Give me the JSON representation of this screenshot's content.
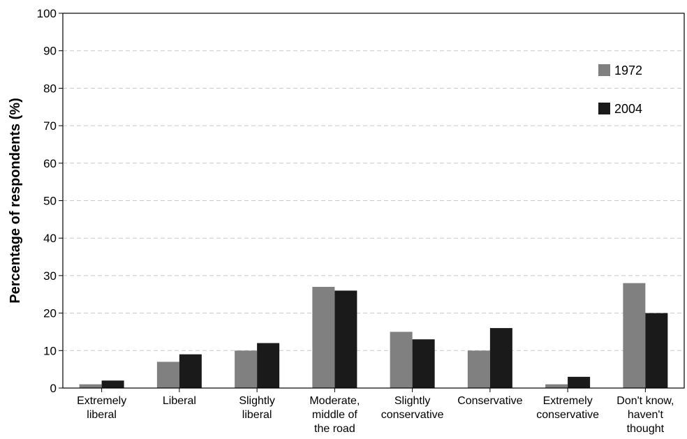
{
  "chart_data": {
    "type": "bar",
    "title": "",
    "xlabel": "",
    "ylabel": "Percentage of respondents (%)",
    "ylim": [
      0,
      100
    ],
    "yticks": [
      0,
      10,
      20,
      30,
      40,
      50,
      60,
      70,
      80,
      90,
      100
    ],
    "grid": true,
    "legend_position": "top-right",
    "categories": [
      [
        "Extremely",
        "liberal"
      ],
      [
        "Liberal"
      ],
      [
        "Slightly",
        "liberal"
      ],
      [
        "Moderate,",
        "middle of",
        "the road"
      ],
      [
        "Slightly",
        "conservative"
      ],
      [
        "Conservative"
      ],
      [
        "Extremely",
        "conservative"
      ],
      [
        "Don't know,",
        "haven't",
        "thought"
      ]
    ],
    "series": [
      {
        "name": "1972",
        "color": "#808080",
        "values": [
          1,
          7,
          10,
          27,
          15,
          10,
          1,
          28
        ]
      },
      {
        "name": "2004",
        "color": "#1a1a1a",
        "values": [
          2,
          9,
          12,
          26,
          13,
          16,
          3,
          20
        ]
      }
    ]
  }
}
